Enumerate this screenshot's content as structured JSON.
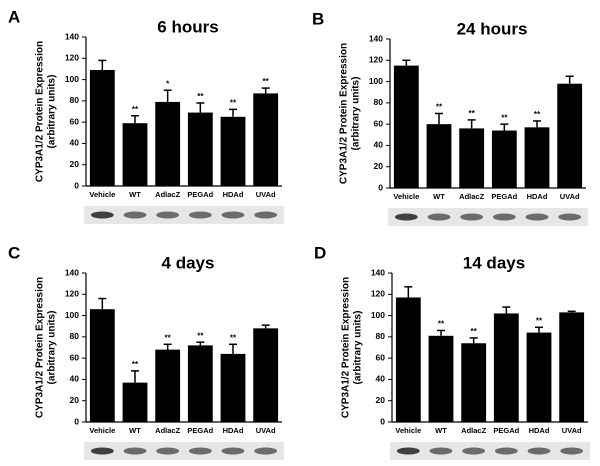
{
  "chart_data": [
    {
      "type": "bar",
      "panel": "A",
      "title": "6 hours",
      "ylabel": [
        "CYP3A1/2 Protein Expression",
        "(arbitrary units)"
      ],
      "categories": [
        "Vehicle",
        "WT",
        "AdlacZ",
        "PEGAd",
        "HDAd",
        "UVAd"
      ],
      "values": [
        109,
        59,
        79,
        69,
        65,
        87
      ],
      "errors": [
        9,
        7,
        11,
        9,
        7,
        5
      ],
      "annotations": [
        null,
        "**",
        "*",
        "**",
        "**",
        "**"
      ],
      "color": "#000000",
      "ylim": [
        0,
        140
      ],
      "yticks": [
        0,
        20,
        40,
        60,
        80,
        100,
        120,
        140
      ]
    },
    {
      "type": "bar",
      "panel": "B",
      "title": "24 hours",
      "ylabel": [
        "CYP3A1/2 Protein Expression",
        "(arbitrary units)"
      ],
      "categories": [
        "Vehicle",
        "WT",
        "AdlacZ",
        "PEGAd",
        "HDAd",
        "UVAd"
      ],
      "values": [
        115,
        60,
        56,
        54,
        57,
        98
      ],
      "errors": [
        5,
        10,
        8,
        6,
        6,
        7
      ],
      "annotations": [
        null,
        "**",
        "**",
        "**",
        "**",
        null
      ],
      "color": "#000000",
      "ylim": [
        0,
        140
      ],
      "yticks": [
        0,
        20,
        40,
        60,
        80,
        100,
        120,
        140
      ]
    },
    {
      "type": "bar",
      "panel": "C",
      "title": "4 days",
      "ylabel": [
        "CYP3A1/2 Protein Expression",
        "(arbitrary units)"
      ],
      "categories": [
        "Vehicle",
        "WT",
        "AdlacZ",
        "PEGAd",
        "HDAd",
        "UVAd"
      ],
      "values": [
        106,
        37,
        68,
        72,
        64,
        88
      ],
      "errors": [
        10,
        11,
        5,
        3,
        9,
        3
      ],
      "annotations": [
        null,
        "**",
        "**",
        "**",
        "**",
        null
      ],
      "color": "#000000",
      "ylim": [
        0,
        140
      ],
      "yticks": [
        0,
        20,
        40,
        60,
        80,
        100,
        120,
        140
      ]
    },
    {
      "type": "bar",
      "panel": "D",
      "title": "14 days",
      "ylabel": [
        "CYP3A1/2 Protein Expression",
        "(arbitrary units)"
      ],
      "categories": [
        "Vehicle",
        "WT",
        "AdlacZ",
        "PEGAd",
        "HDAd",
        "UVAd"
      ],
      "values": [
        117,
        81,
        74,
        102,
        84,
        103
      ],
      "errors": [
        10,
        5,
        5,
        6,
        5,
        1
      ],
      "annotations": [
        null,
        "**",
        "**",
        null,
        "**",
        null
      ],
      "color": "#000000",
      "ylim": [
        0,
        140
      ],
      "yticks": [
        0,
        20,
        40,
        60,
        80,
        100,
        120,
        140
      ]
    }
  ]
}
